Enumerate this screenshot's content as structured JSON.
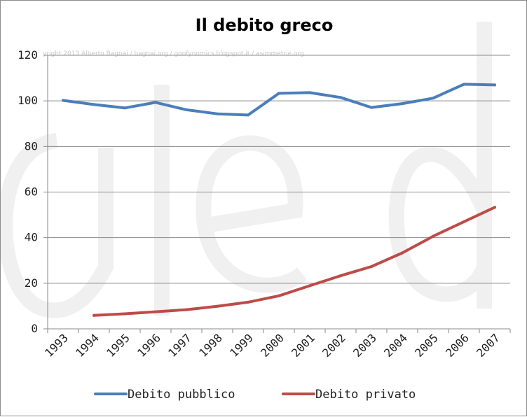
{
  "chart_data": {
    "type": "line",
    "title": "Il debito greco",
    "watermark": "yright 2013 Alberto Bagnai / bagnai.org / goofynomics.blogspot.it / asimmetrie.org",
    "categories": [
      "1993",
      "1994",
      "1995",
      "1996",
      "1997",
      "1998",
      "1999",
      "2000",
      "2001",
      "2002",
      "2003",
      "2004",
      "2005",
      "2006",
      "2007"
    ],
    "series": [
      {
        "name": "Debito pubblico",
        "color": "#4a7ebb",
        "values": [
          100.2,
          98.4,
          96.9,
          99.3,
          96.1,
          94.3,
          93.8,
          103.3,
          103.6,
          101.5,
          97.1,
          98.8,
          101.2,
          107.3,
          107.0
        ]
      },
      {
        "name": "Debito privato",
        "color": "#be4b48",
        "values": [
          null,
          5.9,
          6.6,
          7.5,
          8.4,
          9.9,
          11.7,
          14.5,
          18.9,
          23.3,
          27.3,
          33.3,
          40.6,
          47.0,
          53.3
        ]
      }
    ],
    "ylim": [
      0,
      120
    ],
    "yticks": [
      "0",
      "20",
      "40",
      "60",
      "80",
      "100",
      "120"
    ],
    "grid": true,
    "legend": "bottom"
  }
}
